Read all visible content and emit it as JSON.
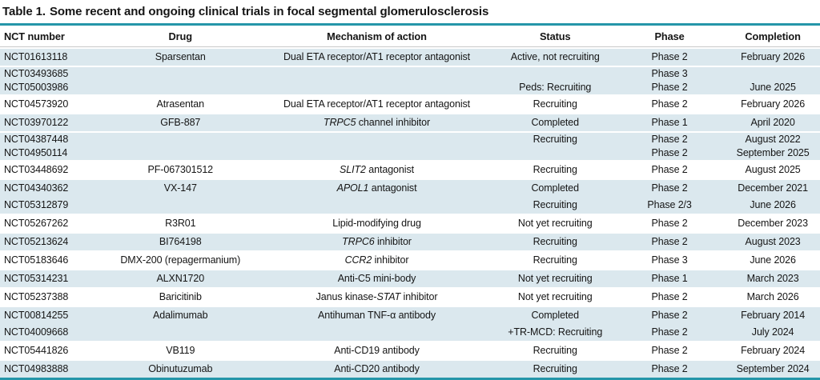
{
  "title": {
    "label": "Table 1.",
    "text": "Some recent and ongoing clinical trials in focal segmental glomerulosclerosis"
  },
  "colors": {
    "accent_teal": "#2596a9",
    "row_shade": "#dbe8ee"
  },
  "columns": [
    "NCT number",
    "Drug",
    "Mechanism of action",
    "Status",
    "Phase",
    "Completion"
  ],
  "rows": [
    {
      "nct": "NCT01613118",
      "drug": "Sparsentan",
      "mechanism": [
        {
          "text": "Dual ETA receptor/AT1 receptor antagonist",
          "italic": false
        }
      ],
      "status": "Active, not recruiting",
      "phase": "Phase 2",
      "completion": "February 2026",
      "shaded": true,
      "block_start": true,
      "tight": false
    },
    {
      "nct": "NCT03493685",
      "drug": "",
      "mechanism": [],
      "status": "",
      "phase": "Phase 3",
      "completion": "",
      "shaded": true,
      "block_start": true,
      "tight": true
    },
    {
      "nct": "NCT05003986",
      "drug": "",
      "mechanism": [],
      "status": "Peds: Recruiting",
      "phase": "Phase 2",
      "completion": "June 2025",
      "shaded": true,
      "block_start": false,
      "tight": true
    },
    {
      "nct": "NCT04573920",
      "drug": "Atrasentan",
      "mechanism": [
        {
          "text": "Dual ETA receptor/AT1 receptor antagonist",
          "italic": false
        }
      ],
      "status": "Recruiting",
      "phase": "Phase 2",
      "completion": "February 2026",
      "shaded": false,
      "block_start": true,
      "tight": false
    },
    {
      "nct": "NCT03970122",
      "drug": "GFB-887",
      "mechanism": [
        {
          "text": "TRPC5",
          "italic": true
        },
        {
          "text": " channel inhibitor",
          "italic": false
        }
      ],
      "status": "Completed",
      "phase": "Phase 1",
      "completion": "April 2020",
      "shaded": true,
      "block_start": true,
      "tight": false
    },
    {
      "nct": "NCT04387448",
      "drug": "",
      "mechanism": [],
      "status": "Recruiting",
      "phase": "Phase 2",
      "completion": "August 2022",
      "shaded": true,
      "block_start": true,
      "tight": true
    },
    {
      "nct": "NCT04950114",
      "drug": "",
      "mechanism": [],
      "status": "",
      "phase": "Phase 2",
      "completion": "September 2025",
      "shaded": true,
      "block_start": false,
      "tight": true
    },
    {
      "nct": "NCT03448692",
      "drug": "PF-067301512",
      "mechanism": [
        {
          "text": "SLIT2",
          "italic": true
        },
        {
          "text": " antagonist",
          "italic": false
        }
      ],
      "status": "Recruiting",
      "phase": "Phase 2",
      "completion": "August 2025",
      "shaded": false,
      "block_start": true,
      "tight": false
    },
    {
      "nct": "NCT04340362",
      "drug": "VX-147",
      "mechanism": [
        {
          "text": "APOL1",
          "italic": true
        },
        {
          "text": " antagonist",
          "italic": false
        }
      ],
      "status": "Completed",
      "phase": "Phase 2",
      "completion": "December 2021",
      "shaded": true,
      "block_start": true,
      "tight": false
    },
    {
      "nct": "NCT05312879",
      "drug": "",
      "mechanism": [],
      "status": "Recruiting",
      "phase": "Phase 2/3",
      "completion": "June 2026",
      "shaded": true,
      "block_start": false,
      "tight": false
    },
    {
      "nct": "NCT05267262",
      "drug": "R3R01",
      "mechanism": [
        {
          "text": "Lipid-modifying drug",
          "italic": false
        }
      ],
      "status": "Not yet recruiting",
      "phase": "Phase 2",
      "completion": "December 2023",
      "shaded": false,
      "block_start": true,
      "tight": false
    },
    {
      "nct": "NCT05213624",
      "drug": "BI764198",
      "mechanism": [
        {
          "text": "TRPC6",
          "italic": true
        },
        {
          "text": " inhibitor",
          "italic": false
        }
      ],
      "status": "Recruiting",
      "phase": "Phase 2",
      "completion": "August 2023",
      "shaded": true,
      "block_start": true,
      "tight": false
    },
    {
      "nct": "NCT05183646",
      "drug": "DMX-200 (repagermanium)",
      "mechanism": [
        {
          "text": "CCR2",
          "italic": true
        },
        {
          "text": " inhibitor",
          "italic": false
        }
      ],
      "status": "Recruiting",
      "phase": "Phase 3",
      "completion": "June 2026",
      "shaded": false,
      "block_start": true,
      "tight": false
    },
    {
      "nct": "NCT05314231",
      "drug": "ALXN1720",
      "mechanism": [
        {
          "text": "Anti-C5 mini-body",
          "italic": false
        }
      ],
      "status": "Not yet recruiting",
      "phase": "Phase 1",
      "completion": "March 2023",
      "shaded": true,
      "block_start": true,
      "tight": false
    },
    {
      "nct": "NCT05237388",
      "drug": "Baricitinib",
      "mechanism": [
        {
          "text": "Janus kinase-",
          "italic": false
        },
        {
          "text": "STAT",
          "italic": true
        },
        {
          "text": " inhibitor",
          "italic": false
        }
      ],
      "status": "Not yet recruiting",
      "phase": "Phase 2",
      "completion": "March 2026",
      "shaded": false,
      "block_start": true,
      "tight": false
    },
    {
      "nct": "NCT00814255",
      "drug": "Adalimumab",
      "mechanism": [
        {
          "text": "Antihuman TNF-α antibody",
          "italic": false
        }
      ],
      "status": "Completed",
      "phase": "Phase 2",
      "completion": "February 2014",
      "shaded": true,
      "block_start": true,
      "tight": false
    },
    {
      "nct": "NCT04009668",
      "drug": "",
      "mechanism": [],
      "status": "+TR-MCD: Recruiting",
      "phase": "Phase 2",
      "completion": "July 2024",
      "shaded": true,
      "block_start": false,
      "tight": false
    },
    {
      "nct": "NCT05441826",
      "drug": "VB119",
      "mechanism": [
        {
          "text": "Anti-CD19 antibody",
          "italic": false
        }
      ],
      "status": "Recruiting",
      "phase": "Phase 2",
      "completion": "February 2024",
      "shaded": false,
      "block_start": true,
      "tight": false
    },
    {
      "nct": "NCT04983888",
      "drug": "Obinutuzumab",
      "mechanism": [
        {
          "text": "Anti-CD20 antibody",
          "italic": false
        }
      ],
      "status": "Recruiting",
      "phase": "Phase 2",
      "completion": "September 2024",
      "shaded": true,
      "block_start": true,
      "tight": false
    }
  ]
}
